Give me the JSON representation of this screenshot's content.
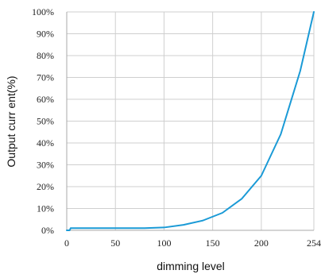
{
  "chart_data": {
    "type": "line",
    "title": "",
    "xlabel": "dimming level",
    "ylabel": "Output curr ent(%)",
    "xlim": [
      0,
      254
    ],
    "ylim": [
      0,
      100
    ],
    "grid": true,
    "x_ticks": [
      "0",
      "50",
      "100",
      "150",
      "200",
      "254"
    ],
    "x_tick_values": [
      0,
      50,
      100,
      150,
      200,
      254
    ],
    "y_ticks": [
      "0%",
      "10%",
      "20%",
      "30%",
      "40%",
      "50%",
      "60%",
      "70%",
      "80%",
      "90%",
      "100%"
    ],
    "y_tick_values": [
      0,
      10,
      20,
      30,
      40,
      50,
      60,
      70,
      80,
      90,
      100
    ],
    "series": [
      {
        "color": "#1a9ad6",
        "x": [
          0,
          1,
          2,
          3,
          4,
          50,
          80,
          100,
          120,
          140,
          160,
          180,
          200,
          220,
          240,
          254
        ],
        "y": [
          0,
          0,
          0,
          0,
          1,
          1,
          1,
          1.3,
          2.5,
          4.5,
          8,
          14.5,
          25,
          44,
          73,
          100
        ]
      }
    ]
  }
}
